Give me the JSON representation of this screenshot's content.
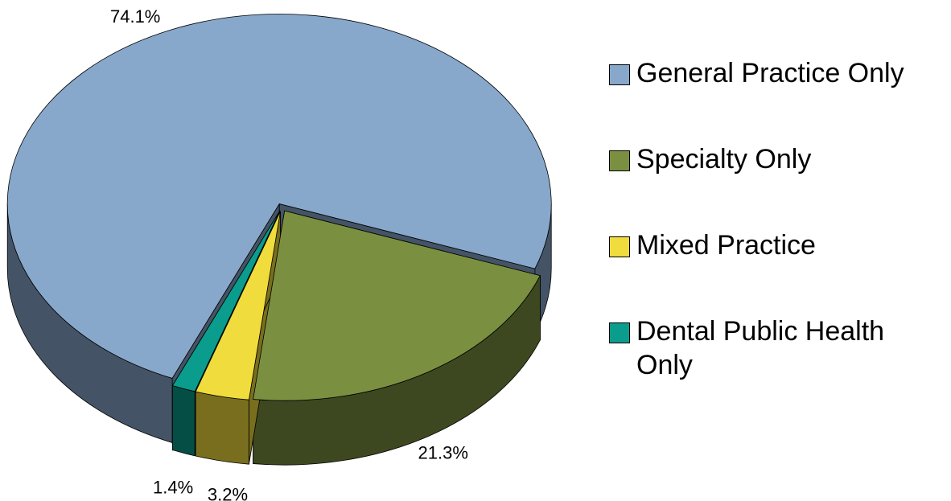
{
  "chart_data": {
    "type": "pie3d",
    "categories": [
      "General Practice Only",
      "Specialty Only",
      "Mixed Practice",
      "Dental Public Health Only"
    ],
    "values": [
      74.1,
      21.3,
      3.2,
      1.4
    ],
    "value_labels": [
      "74.1%",
      "21.3%",
      "3.2%",
      "1.4%"
    ],
    "colors": [
      "#87a8cb",
      "#7a9040",
      "#f0dc3c",
      "#0a9c8c"
    ],
    "legend": "right"
  }
}
